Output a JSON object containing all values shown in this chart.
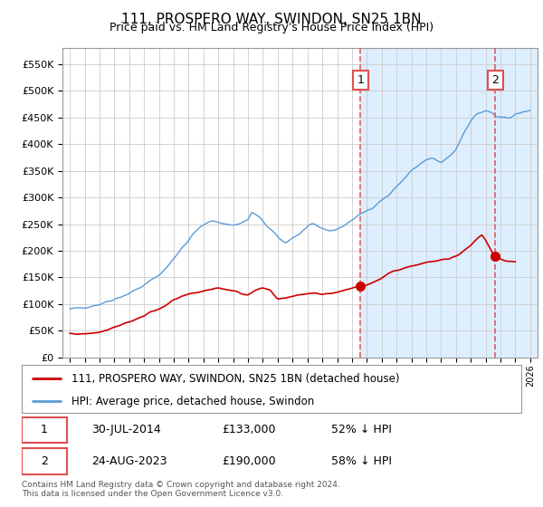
{
  "title": "111, PROSPERO WAY, SWINDON, SN25 1BN",
  "subtitle": "Price paid vs. HM Land Registry's House Price Index (HPI)",
  "hpi_color": "#5b9bd5",
  "hpi_fill_color": "#ddeeff",
  "price_color": "#cc0000",
  "dashed_line_color": "#e05050",
  "background_color": "#ffffff",
  "grid_color": "#cccccc",
  "ylim": [
    0,
    580000
  ],
  "yticks": [
    0,
    50000,
    100000,
    150000,
    200000,
    250000,
    300000,
    350000,
    400000,
    450000,
    500000,
    550000
  ],
  "transaction1_date": 2014.58,
  "transaction1_price": 133000,
  "transaction2_date": 2023.65,
  "transaction2_price": 190000,
  "legend_line1": "111, PROSPERO WAY, SWINDON, SN25 1BN (detached house)",
  "legend_line2": "HPI: Average price, detached house, Swindon",
  "table_row1": [
    "1",
    "30-JUL-2014",
    "£133,000",
    "52% ↓ HPI"
  ],
  "table_row2": [
    "2",
    "24-AUG-2023",
    "£190,000",
    "58% ↓ HPI"
  ],
  "footer": "Contains HM Land Registry data © Crown copyright and database right 2024.\nThis data is licensed under the Open Government Licence v3.0.",
  "xlim_start": 1994.5,
  "xlim_end": 2026.5
}
